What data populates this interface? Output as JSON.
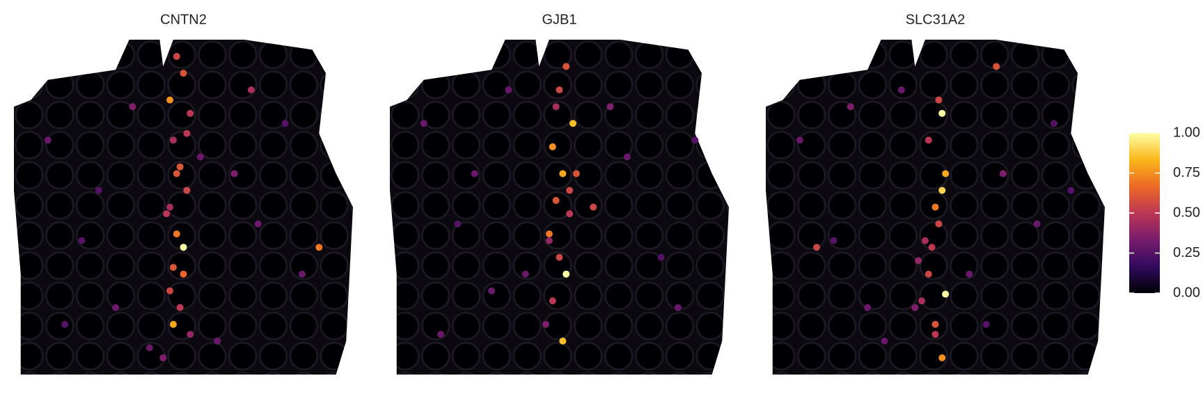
{
  "chart_data": [
    {
      "type": "scatter",
      "title": "CNTN2",
      "x": [
        48,
        50,
        46,
        52,
        47,
        49,
        51,
        45,
        48,
        50,
        47,
        46,
        49,
        52,
        44,
        48,
        51,
        47,
        50,
        46,
        10,
        20,
        30,
        65,
        72,
        80,
        85,
        60,
        35,
        25,
        90,
        15,
        70,
        55,
        40
      ],
      "y": [
        5,
        10,
        18,
        22,
        30,
        38,
        45,
        52,
        58,
        62,
        68,
        75,
        80,
        88,
        95,
        40,
        28,
        85,
        70,
        50,
        30,
        60,
        80,
        40,
        55,
        25,
        70,
        90,
        20,
        45,
        62,
        85,
        15,
        35,
        92
      ],
      "values": [
        0.55,
        0.6,
        0.75,
        0.5,
        0.45,
        0.6,
        0.55,
        0.5,
        0.7,
        1.0,
        0.6,
        0.55,
        0.5,
        0.4,
        0.35,
        0.6,
        0.5,
        0.8,
        0.65,
        0.45,
        0.3,
        0.25,
        0.3,
        0.35,
        0.3,
        0.25,
        0.3,
        0.3,
        0.35,
        0.25,
        0.7,
        0.25,
        0.45,
        0.3,
        0.3
      ],
      "xlim": [
        0,
        100
      ],
      "ylim": [
        100,
        0
      ]
    },
    {
      "type": "scatter",
      "title": "GJB1",
      "x": [
        52,
        50,
        54,
        48,
        51,
        49,
        53,
        47,
        50,
        52,
        48,
        46,
        51,
        55,
        49,
        47,
        53,
        10,
        20,
        30,
        70,
        80,
        85,
        60,
        35,
        25,
        90,
        15,
        65,
        40
      ],
      "y": [
        8,
        15,
        25,
        32,
        40,
        48,
        52,
        58,
        65,
        70,
        78,
        85,
        90,
        40,
        20,
        60,
        45,
        25,
        55,
        75,
        35,
        65,
        80,
        50,
        15,
        40,
        30,
        88,
        20,
        70
      ],
      "values": [
        0.6,
        0.55,
        0.85,
        0.75,
        0.8,
        0.6,
        0.5,
        0.7,
        0.55,
        1.0,
        0.5,
        0.35,
        0.85,
        0.6,
        0.45,
        0.4,
        0.55,
        0.3,
        0.25,
        0.3,
        0.3,
        0.25,
        0.3,
        0.55,
        0.3,
        0.3,
        0.25,
        0.3,
        0.35,
        0.3
      ],
      "xlim": [
        0,
        100
      ],
      "ylim": [
        100,
        0
      ]
    },
    {
      "type": "scatter",
      "title": "SLC31A2",
      "x": [
        52,
        53,
        50,
        52,
        51,
        49,
        48,
        46,
        50,
        52,
        47,
        45,
        50,
        53,
        44,
        48,
        51,
        10,
        20,
        30,
        70,
        80,
        85,
        60,
        35,
        25,
        90,
        15,
        65,
        40,
        68
      ],
      "y": [
        22,
        40,
        50,
        45,
        55,
        62,
        70,
        78,
        85,
        95,
        60,
        66,
        88,
        76,
        80,
        30,
        18,
        30,
        60,
        80,
        40,
        55,
        25,
        70,
        90,
        20,
        45,
        62,
        85,
        15,
        8
      ],
      "values": [
        1.0,
        0.8,
        0.7,
        0.9,
        0.55,
        0.5,
        0.55,
        0.45,
        0.6,
        0.75,
        0.45,
        0.4,
        0.5,
        1.0,
        0.35,
        0.5,
        0.55,
        0.3,
        0.25,
        0.3,
        0.35,
        0.3,
        0.25,
        0.3,
        0.3,
        0.35,
        0.25,
        0.55,
        0.25,
        0.3,
        0.6
      ],
      "xlim": [
        0,
        100
      ],
      "ylim": [
        100,
        0
      ]
    }
  ],
  "colorbar": {
    "lim": [
      0,
      1
    ],
    "ticks": [
      {
        "value": 0,
        "label": "0.00"
      },
      0.25,
      {
        "value": 0.5,
        "label": "0.50"
      },
      0.75,
      {
        "value": 1,
        "label": "1.00"
      }
    ],
    "colormap": [
      "#000004",
      "#320a5e",
      "#781c6d",
      "#bc3754",
      "#ed6925",
      "#fbb61a",
      "#fcffa4"
    ]
  }
}
